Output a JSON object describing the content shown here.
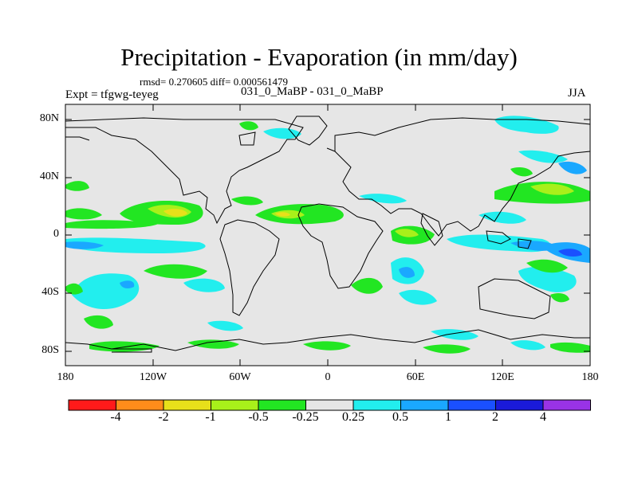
{
  "title": "Precipitation - Evaporation (in mm/day)",
  "stats": "rmsd= 0.270605 diff= 0.000561479",
  "experiment": "Expt = tfgwg-teyeg",
  "cases": "031_0_MaBP - 031_0_MaBP",
  "season": "JJA",
  "axes": {
    "lat_labels": [
      "80N",
      "40N",
      "0",
      "40S",
      "80S"
    ],
    "lon_labels": [
      "180",
      "120W",
      "60W",
      "0",
      "60E",
      "120E",
      "180"
    ]
  },
  "colorbar": {
    "labels": [
      "-4",
      "-2",
      "-1",
      "-0.5",
      "-0.25",
      "0.25",
      "0.5",
      "1",
      "2",
      "4"
    ],
    "colors": [
      "#ff1a1a",
      "#ff8c1a",
      "#e8e01a",
      "#a8f01a",
      "#22e622",
      "#e6e6e6",
      "#22eeee",
      "#1aa8ff",
      "#1a50ff",
      "#1a1ad9",
      "#9933e6"
    ]
  },
  "map_colors": {
    "background": "#e6e6e6",
    "coast": "#000000"
  }
}
